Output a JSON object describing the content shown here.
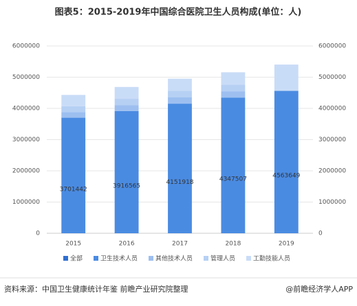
{
  "chart_data": {
    "type": "stacked_bar",
    "title": "图表5：2015-2019年中国综合医院卫生人员构成(单位：人)",
    "source": "资料来源：中国卫生健康统计年鉴 前瞻产业研究院整理",
    "credit": "@前瞻经济学人APP",
    "categories": [
      "2015",
      "2016",
      "2017",
      "2018",
      "2019"
    ],
    "series": [
      {
        "name": "全部",
        "color": "#2f6fd0",
        "values": [
          null,
          null,
          null,
          null,
          null
        ]
      },
      {
        "name": "卫生技术人员",
        "color": "#4a8be2",
        "values": [
          3701442,
          3916565,
          4151918,
          4347507,
          4563649
        ]
      },
      {
        "name": "其他技术人员",
        "color": "#9dbff0",
        "values": [
          180000,
          190000,
          200000,
          200000,
          null
        ]
      },
      {
        "name": "管理人员",
        "color": "#b6d0f4",
        "values": [
          190000,
          200000,
          210000,
          210000,
          null
        ]
      },
      {
        "name": "工勤技能人员",
        "color": "#c9dcf7",
        "values": [
          360000,
          380000,
          390000,
          400000,
          840000
        ]
      }
    ],
    "ylim": [
      0,
      6000000
    ],
    "yticks": [
      0,
      1000000,
      2000000,
      3000000,
      4000000,
      5000000,
      6000000
    ],
    "y2lim": [
      0,
      6000000
    ],
    "y2ticks": [
      0,
      1000000,
      2000000,
      3000000,
      4000000,
      5000000,
      6000000
    ],
    "grid": true,
    "legend": "bottom"
  }
}
